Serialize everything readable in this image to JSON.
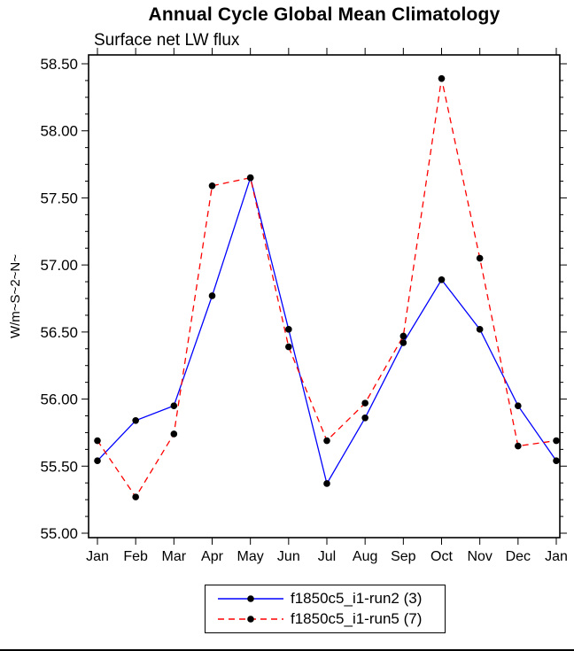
{
  "title": "Annual Cycle Global Mean Climatology",
  "subtitle": "Surface net LW flux",
  "ylabel": "W/m~S~2~N~",
  "chart_data": {
    "type": "line",
    "title": "Annual Cycle Global Mean Climatology",
    "subtitle": "Surface net LW flux",
    "xlabel": "",
    "ylabel": "W/m~S~2~N~",
    "categories": [
      "Jan",
      "Feb",
      "Mar",
      "Apr",
      "May",
      "Jun",
      "Jul",
      "Aug",
      "Sep",
      "Oct",
      "Nov",
      "Dec",
      "Jan"
    ],
    "ylim": [
      55.0,
      58.5
    ],
    "ytick_major": 0.5,
    "yminor_per_major": 3,
    "ytick_labels": [
      "55.00",
      "55.50",
      "56.00",
      "56.50",
      "57.00",
      "57.50",
      "58.00",
      "58.50"
    ],
    "grid": false,
    "legend_position": "bottom",
    "series": [
      {
        "name": "f1850c5_i1-run2 (3)",
        "color": "#0000ff",
        "line_style": "solid",
        "marker": "circle",
        "marker_color": "#000000",
        "values": [
          55.54,
          55.84,
          55.95,
          56.77,
          57.65,
          56.52,
          55.37,
          55.86,
          56.42,
          56.89,
          56.52,
          55.95,
          55.54
        ]
      },
      {
        "name": "f1850c5_i1-run5 (7)",
        "color": "#ff0000",
        "line_style": "dashed",
        "marker": "circle",
        "marker_color": "#000000",
        "values": [
          55.69,
          55.27,
          55.74,
          57.59,
          57.65,
          56.39,
          55.69,
          55.97,
          56.47,
          58.39,
          57.05,
          55.65,
          55.69
        ]
      }
    ]
  }
}
